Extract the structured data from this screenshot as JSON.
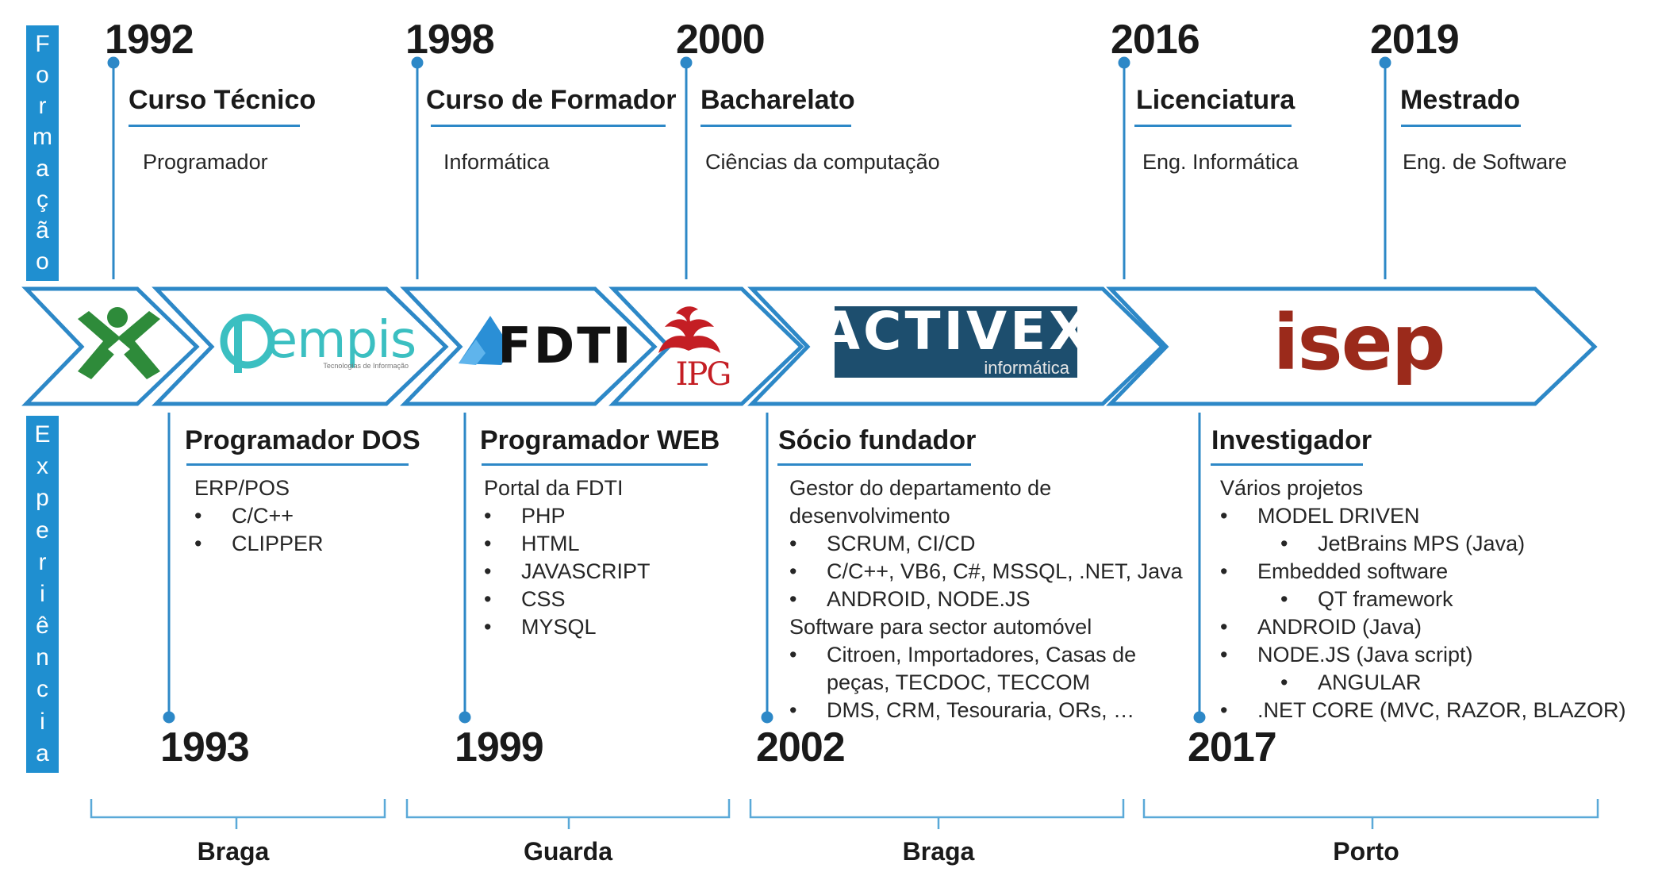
{
  "side_labels": {
    "formacao": "Formação",
    "experiencia": "Experiência"
  },
  "education": [
    {
      "year": "1992",
      "title": "Curso Técnico",
      "subtitle": "Programador"
    },
    {
      "year": "1998",
      "title": "Curso de Formador",
      "subtitle": "Informática"
    },
    {
      "year": "2000",
      "title": "Bacharelato",
      "subtitle": "Ciências da computação"
    },
    {
      "year": "2016",
      "title": "Licenciatura",
      "subtitle": "Eng. Informática"
    },
    {
      "year": "2019",
      "title": "Mestrado",
      "subtitle": "Eng. de Software"
    }
  ],
  "logos": {
    "empis": "empis",
    "empis_tagline": "Tecnologias de Informação",
    "fdti": "FDTI",
    "ipg": "IPG",
    "activex": "ACTIVEX",
    "activex_sub": "informática",
    "isep": "isep"
  },
  "experience": [
    {
      "title": "Programador DOS",
      "year": "1993",
      "lines": [
        {
          "level": 0,
          "text": "ERP/POS"
        },
        {
          "level": 1,
          "text": "C/C++"
        },
        {
          "level": 1,
          "text": "CLIPPER"
        }
      ]
    },
    {
      "title": "Programador WEB",
      "year": "1999",
      "lines": [
        {
          "level": 0,
          "text": "Portal da FDTI"
        },
        {
          "level": 1,
          "text": "PHP"
        },
        {
          "level": 1,
          "text": "HTML"
        },
        {
          "level": 1,
          "text": "JAVASCRIPT"
        },
        {
          "level": 1,
          "text": "CSS"
        },
        {
          "level": 1,
          "text": "MYSQL"
        }
      ]
    },
    {
      "title": "Sócio fundador",
      "year": "2002",
      "lines": [
        {
          "level": 0,
          "text": "Gestor do departamento de"
        },
        {
          "level": 0,
          "text": "desenvolvimento"
        },
        {
          "level": 1,
          "text": "SCRUM, CI/CD"
        },
        {
          "level": 1,
          "text": "C/C++, VB6, C#, MSSQL, .NET, Java"
        },
        {
          "level": 1,
          "text": "ANDROID, NODE.JS"
        },
        {
          "level": 0,
          "text": "Software para sector automóvel"
        },
        {
          "level": 1,
          "text": "Citroen, Importadores, Casas de"
        },
        {
          "level": 9,
          "text": "peças, TECDOC, TECCOM"
        },
        {
          "level": 1,
          "text": "DMS, CRM, Tesouraria, ORs, …"
        }
      ]
    },
    {
      "title": "Investigador",
      "year": "2017",
      "lines": [
        {
          "level": 0,
          "text": "Vários projetos"
        },
        {
          "level": 1,
          "text": "MODEL DRIVEN"
        },
        {
          "level": 2,
          "text": "JetBrains MPS (Java)"
        },
        {
          "level": 1,
          "text": "Embedded software"
        },
        {
          "level": 2,
          "text": "QT framework"
        },
        {
          "level": 1,
          "text": "ANDROID (Java)"
        },
        {
          "level": 1,
          "text": "NODE.JS (Java script)"
        },
        {
          "level": 2,
          "text": "ANGULAR"
        },
        {
          "level": 1,
          "text": ".NET CORE (MVC, RAZOR, BLAZOR)"
        }
      ]
    }
  ],
  "locations": [
    "Braga",
    "Guarda",
    "Braga",
    "Porto"
  ],
  "colors": {
    "accent": "#1f8fd0",
    "line": "#2d88c7",
    "bracket": "#5aa9d8",
    "activex_bg": "#1d4e6e",
    "isep_red": "#9b2a1b",
    "ipg_red": "#c41e24",
    "empis_teal": "#3bbfc1",
    "cap_green": "#2e8b3a"
  }
}
